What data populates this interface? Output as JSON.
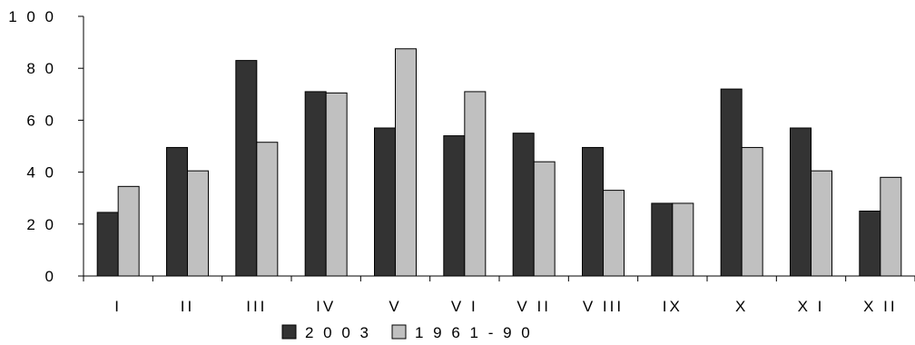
{
  "chart_data": {
    "type": "bar",
    "categories": [
      "I",
      "II",
      "III",
      "IV",
      "V",
      "VI",
      "VII",
      "VIII",
      "IX",
      "X",
      "XI",
      "XII"
    ],
    "category_labels": [
      "I",
      "II",
      "III",
      "IV",
      "V",
      "V I",
      "V II",
      "V III",
      "IX",
      "X",
      "X I",
      "X II"
    ],
    "series": [
      {
        "name": "2003",
        "legend_label": "2 0 0 3",
        "color": "#333333",
        "values": [
          24.5,
          49.5,
          83,
          71,
          57,
          54,
          55,
          49.5,
          28,
          72,
          57,
          25
        ]
      },
      {
        "name": "1961-90",
        "legend_label": "1 9 6 1 - 9 0",
        "color": "#c0c0c0",
        "values": [
          34.5,
          40.5,
          51.5,
          70.5,
          87.5,
          71,
          44,
          33,
          28,
          49.5,
          40.5,
          38
        ]
      }
    ],
    "yticks": [
      0,
      20,
      40,
      60,
      80,
      100
    ],
    "ytick_labels": [
      "0",
      "2 0",
      "4 0",
      "6 0",
      "8 0",
      "1 0 0"
    ],
    "ylim": [
      0,
      100
    ],
    "title": "",
    "xlabel": "",
    "ylabel": "",
    "grid": false,
    "legend": "bottom-center"
  }
}
